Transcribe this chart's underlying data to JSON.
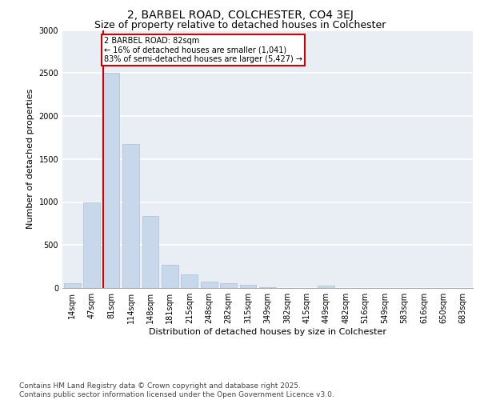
{
  "title_line1": "2, BARBEL ROAD, COLCHESTER, CO4 3EJ",
  "title_line2": "Size of property relative to detached houses in Colchester",
  "xlabel": "Distribution of detached houses by size in Colchester",
  "ylabel": "Number of detached properties",
  "categories": [
    "14sqm",
    "47sqm",
    "81sqm",
    "114sqm",
    "148sqm",
    "181sqm",
    "215sqm",
    "248sqm",
    "282sqm",
    "315sqm",
    "349sqm",
    "382sqm",
    "415sqm",
    "449sqm",
    "482sqm",
    "516sqm",
    "549sqm",
    "583sqm",
    "616sqm",
    "650sqm",
    "683sqm"
  ],
  "values": [
    60,
    1000,
    2500,
    1670,
    840,
    270,
    155,
    70,
    55,
    40,
    5,
    2,
    2,
    30,
    2,
    0,
    0,
    0,
    0,
    0,
    0
  ],
  "bar_color": "#c8d8eb",
  "bar_edge_color": "#a8c0d8",
  "vline_color": "#cc0000",
  "annotation_text": "2 BARBEL ROAD: 82sqm\n← 16% of detached houses are smaller (1,041)\n83% of semi-detached houses are larger (5,427) →",
  "annotation_box_color": "#cc0000",
  "ylim": [
    0,
    3000
  ],
  "yticks": [
    0,
    500,
    1000,
    1500,
    2000,
    2500,
    3000
  ],
  "background_color": "#e8eef4",
  "footer_text": "Contains HM Land Registry data © Crown copyright and database right 2025.\nContains public sector information licensed under the Open Government Licence v3.0.",
  "grid_color": "#ffffff",
  "title_fontsize": 10,
  "subtitle_fontsize": 9,
  "axis_label_fontsize": 8,
  "tick_fontsize": 7,
  "footer_fontsize": 6.5,
  "vline_bin_index": 2
}
